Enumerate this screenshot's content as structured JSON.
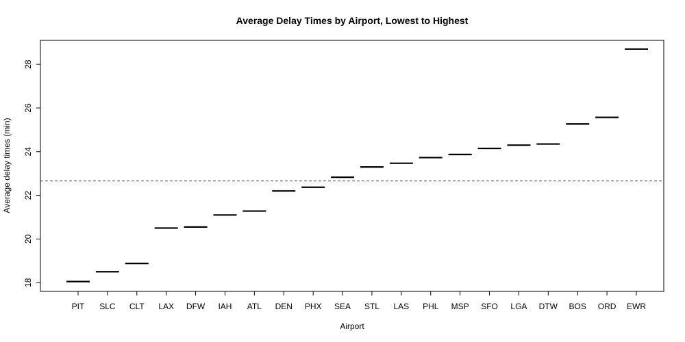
{
  "chart_data": {
    "type": "dot",
    "title": "Average Delay Times by Airport, Lowest to Highest",
    "xlabel": "Airport",
    "ylabel": "Average delay times (min)",
    "ylim": [
      17.6,
      29.1
    ],
    "yticks": [
      18,
      20,
      22,
      24,
      26,
      28
    ],
    "yticklabels": [
      "18",
      "20",
      "22",
      "24",
      "26",
      "28"
    ],
    "categories": [
      "PIT",
      "SLC",
      "CLT",
      "LAX",
      "DFW",
      "IAH",
      "ATL",
      "DEN",
      "PHX",
      "SEA",
      "STL",
      "LAS",
      "PHL",
      "MSP",
      "SFO",
      "LGA",
      "DTW",
      "BOS",
      "ORD",
      "EWR"
    ],
    "values": [
      18.05,
      18.5,
      18.88,
      20.5,
      20.55,
      21.1,
      21.28,
      22.2,
      22.37,
      22.83,
      23.3,
      23.47,
      23.73,
      23.87,
      24.15,
      24.3,
      24.35,
      25.27,
      25.57,
      28.7
    ],
    "reference_line": {
      "value": 22.66,
      "style": "dashed"
    },
    "grid": false,
    "colors": {
      "marker": "#000000",
      "reference_line": "#555555",
      "axis": "#000000"
    }
  }
}
